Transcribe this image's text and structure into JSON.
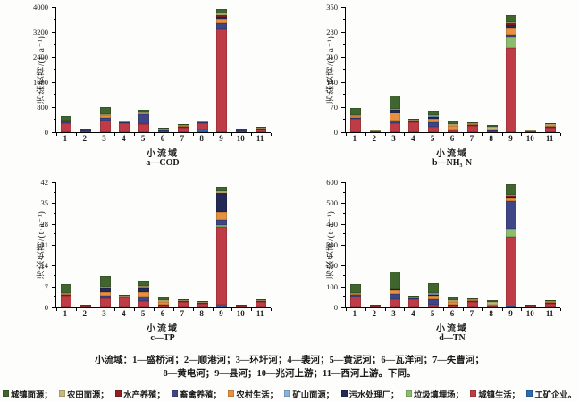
{
  "figure": {
    "ylabel": "污染负荷/(t·a⁻¹)",
    "xlabel": "小流域"
  },
  "caption": {
    "line1": "小流域：1—盛桥河；2—顺港河；3—环圩河；4—裴河；5—黄泥河；6—瓦洋河；7—失曹河；",
    "line2": "8—黄电河；9—县河；10—兆河上游；11—西河上游。下同。"
  },
  "sources": [
    {
      "label": "城镇面源",
      "color": "#41652f",
      "suffix": "；"
    },
    {
      "label": "农田面源",
      "color": "#c9b87c",
      "suffix": "；"
    },
    {
      "label": "水产养殖",
      "color": "#8e2126",
      "suffix": "；"
    },
    {
      "label": "畜禽养殖",
      "color": "#3f4687",
      "suffix": "；"
    },
    {
      "label": "农村生活",
      "color": "#e79140",
      "suffix": "；"
    },
    {
      "label": "矿山面源",
      "color": "#8ab4d8",
      "suffix": "；"
    },
    {
      "label": "污水处理厂",
      "color": "#232a55",
      "suffix": "；"
    },
    {
      "label": "垃圾填埋场",
      "color": "#8cbd6d",
      "suffix": "；"
    },
    {
      "label": "城镇生活",
      "color": "#bf3b45",
      "suffix": "；"
    },
    {
      "label": "工矿企业",
      "color": "#2d6cb0",
      "suffix": "。"
    }
  ],
  "chart_data": [
    {
      "type": "bar",
      "stacked": true,
      "title": "a—COD",
      "categories": [
        "1",
        "2",
        "3",
        "4",
        "5",
        "6",
        "7",
        "8",
        "9",
        "10",
        "11"
      ],
      "ylim": [
        0,
        4000
      ],
      "yticks": [
        0,
        800,
        1600,
        2400,
        3200,
        4000
      ],
      "series": [
        {
          "name": "工矿企业",
          "values": [
            0,
            0,
            0,
            0,
            0,
            0,
            0,
            80,
            0,
            0,
            0
          ]
        },
        {
          "name": "城镇生活",
          "values": [
            290,
            30,
            380,
            300,
            270,
            40,
            150,
            200,
            3280,
            12,
            95
          ]
        },
        {
          "name": "垃圾填埋场",
          "values": [
            0,
            0,
            0,
            0,
            0,
            0,
            0,
            0,
            40,
            0,
            0
          ]
        },
        {
          "name": "畜禽养殖",
          "values": [
            40,
            5,
            80,
            20,
            300,
            10,
            15,
            15,
            180,
            4,
            15
          ]
        },
        {
          "name": "农村生活",
          "values": [
            0,
            0,
            70,
            0,
            70,
            25,
            10,
            0,
            120,
            0,
            0
          ]
        },
        {
          "name": "污水处理厂",
          "values": [
            0,
            0,
            0,
            0,
            0,
            0,
            0,
            0,
            80,
            0,
            0
          ]
        },
        {
          "name": "矿山面源",
          "values": [
            0,
            0,
            0,
            0,
            0,
            0,
            0,
            0,
            0,
            0,
            0
          ]
        },
        {
          "name": "水产养殖",
          "values": [
            0,
            0,
            0,
            0,
            0,
            0,
            0,
            0,
            40,
            0,
            0
          ]
        },
        {
          "name": "农田面源",
          "values": [
            10,
            10,
            20,
            15,
            10,
            30,
            15,
            10,
            60,
            5,
            25
          ]
        },
        {
          "name": "城镇面源",
          "values": [
            160,
            10,
            230,
            25,
            60,
            20,
            20,
            25,
            150,
            5,
            20
          ]
        }
      ]
    },
    {
      "type": "bar",
      "stacked": true,
      "title": "b—NH₃-N",
      "categories": [
        "1",
        "2",
        "3",
        "4",
        "5",
        "6",
        "7",
        "8",
        "9",
        "10",
        "11"
      ],
      "ylim": [
        0,
        350
      ],
      "yticks": [
        0,
        70,
        140,
        210,
        280,
        350
      ],
      "series": [
        {
          "name": "工矿企业",
          "values": [
            0,
            0,
            0,
            0,
            0,
            0,
            0,
            0,
            0,
            0,
            0
          ]
        },
        {
          "name": "城镇生活",
          "values": [
            37,
            3,
            26,
            28,
            16,
            6,
            17,
            3,
            235,
            3,
            13
          ]
        },
        {
          "name": "垃圾填埋场",
          "values": [
            0,
            0,
            0,
            0,
            0,
            0,
            0,
            0,
            32,
            0,
            0
          ]
        },
        {
          "name": "畜禽养殖",
          "values": [
            3,
            0,
            6,
            2,
            12,
            2,
            1,
            1,
            6,
            0,
            2
          ]
        },
        {
          "name": "农村生活",
          "values": [
            5,
            0,
            22,
            1,
            10,
            9,
            1,
            2,
            20,
            0,
            3
          ]
        },
        {
          "name": "污水处理厂",
          "values": [
            0,
            0,
            8,
            0,
            4,
            0,
            0,
            0,
            8,
            0,
            0
          ]
        },
        {
          "name": "矿山面源",
          "values": [
            0,
            0,
            0,
            0,
            2,
            0,
            0,
            0,
            0,
            0,
            0
          ]
        },
        {
          "name": "水产养殖",
          "values": [
            0,
            0,
            0,
            0,
            0,
            0,
            0,
            0,
            3,
            0,
            0
          ]
        },
        {
          "name": "农田面源",
          "values": [
            2,
            1,
            3,
            2,
            2,
            5,
            1,
            8,
            4,
            1,
            3
          ]
        },
        {
          "name": "城镇面源",
          "values": [
            21,
            1,
            38,
            3,
            14,
            8,
            3,
            4,
            20,
            1,
            3
          ]
        }
      ]
    },
    {
      "type": "bar",
      "stacked": true,
      "title": "c—TP",
      "categories": [
        "1",
        "2",
        "3",
        "4",
        "5",
        "6",
        "7",
        "8",
        "9",
        "10",
        "11"
      ],
      "ylim": [
        0,
        42
      ],
      "yticks": [
        0,
        7,
        14,
        21,
        28,
        35,
        42
      ],
      "series": [
        {
          "name": "工矿企业",
          "values": [
            0,
            0,
            0,
            0,
            0,
            0,
            0,
            0,
            1,
            0,
            0
          ]
        },
        {
          "name": "城镇生活",
          "values": [
            3.8,
            0.3,
            3,
            3.2,
            2,
            0.6,
            1.9,
            1.2,
            26,
            0.4,
            1.9
          ]
        },
        {
          "name": "垃圾填埋场",
          "values": [
            0,
            0,
            0,
            0,
            0,
            0,
            0,
            0,
            0.5,
            0,
            0
          ]
        },
        {
          "name": "畜禽养殖",
          "values": [
            0.4,
            0,
            1,
            0.2,
            1.5,
            0.2,
            0.1,
            0.1,
            2,
            0,
            0.2
          ]
        },
        {
          "name": "农村生活",
          "values": [
            0.4,
            0,
            1.2,
            0,
            1.5,
            0.8,
            0,
            0,
            2.5,
            0,
            0
          ]
        },
        {
          "name": "污水处理厂",
          "values": [
            0,
            0,
            1.3,
            0,
            1.5,
            0,
            0,
            0,
            6,
            0,
            0
          ]
        },
        {
          "name": "矿山面源",
          "values": [
            0,
            0,
            0,
            0,
            0.5,
            0,
            0,
            0,
            0,
            0,
            0
          ]
        },
        {
          "name": "水产养殖",
          "values": [
            0,
            0,
            0,
            0,
            0,
            0,
            0,
            0,
            0.5,
            0,
            0
          ]
        },
        {
          "name": "农田面源",
          "values": [
            0.2,
            0.1,
            0.3,
            0.1,
            0.2,
            0.8,
            0.1,
            0.3,
            0.5,
            0.1,
            0.2
          ]
        },
        {
          "name": "城镇面源",
          "values": [
            2.8,
            0.2,
            3.7,
            0.3,
            1.3,
            0.8,
            0.2,
            0.2,
            1.5,
            0.1,
            0.2
          ]
        }
      ]
    },
    {
      "type": "bar",
      "stacked": true,
      "title": "d—TN",
      "categories": [
        "1",
        "2",
        "3",
        "4",
        "5",
        "6",
        "7",
        "8",
        "9",
        "10",
        "11"
      ],
      "ylim": [
        0,
        600
      ],
      "yticks": [
        0,
        100,
        200,
        300,
        400,
        500,
        600
      ],
      "series": [
        {
          "name": "工矿企业",
          "values": [
            0,
            0,
            0,
            0,
            0,
            0,
            0,
            0,
            3,
            0,
            0
          ]
        },
        {
          "name": "城镇生活",
          "values": [
            52,
            4,
            40,
            38,
            15,
            8,
            26,
            4,
            335,
            4,
            16
          ]
        },
        {
          "name": "垃圾填埋场",
          "values": [
            0,
            0,
            0,
            0,
            0,
            0,
            0,
            0,
            40,
            0,
            0
          ]
        },
        {
          "name": "畜禽养殖",
          "values": [
            8,
            0,
            25,
            3,
            25,
            3,
            2,
            2,
            130,
            0,
            3
          ]
        },
        {
          "name": "农村生活",
          "values": [
            6,
            0,
            15,
            1,
            14,
            12,
            1,
            2,
            15,
            0,
            4
          ]
        },
        {
          "name": "污水处理厂",
          "values": [
            0,
            0,
            5,
            0,
            3,
            0,
            0,
            0,
            5,
            0,
            0
          ]
        },
        {
          "name": "矿山面源",
          "values": [
            0,
            0,
            0,
            0,
            3,
            0,
            0,
            0,
            0,
            0,
            0
          ]
        },
        {
          "name": "水产养殖",
          "values": [
            0,
            0,
            0,
            0,
            0,
            0,
            0,
            0,
            5,
            0,
            0
          ]
        },
        {
          "name": "农田面源",
          "values": [
            4,
            2,
            5,
            2,
            3,
            8,
            2,
            14,
            7,
            2,
            6
          ]
        },
        {
          "name": "城镇面源",
          "values": [
            42,
            2,
            80,
            4,
            50,
            14,
            4,
            6,
            50,
            2,
            6
          ]
        }
      ]
    }
  ]
}
